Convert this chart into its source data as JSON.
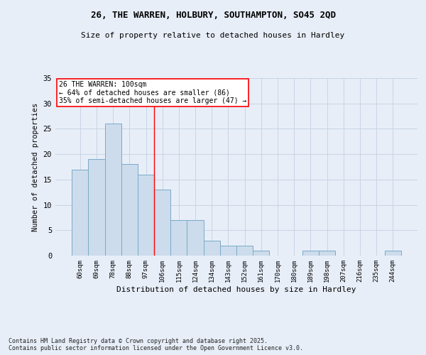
{
  "title1": "26, THE WARREN, HOLBURY, SOUTHAMPTON, SO45 2QD",
  "title2": "Size of property relative to detached houses in Hardley",
  "xlabel": "Distribution of detached houses by size in Hardley",
  "ylabel": "Number of detached properties",
  "footnote": "Contains HM Land Registry data © Crown copyright and database right 2025.\nContains public sector information licensed under the Open Government Licence v3.0.",
  "categories": [
    "60sqm",
    "69sqm",
    "78sqm",
    "88sqm",
    "97sqm",
    "106sqm",
    "115sqm",
    "124sqm",
    "134sqm",
    "143sqm",
    "152sqm",
    "161sqm",
    "170sqm",
    "180sqm",
    "189sqm",
    "198sqm",
    "207sqm",
    "216sqm",
    "235sqm",
    "244sqm"
  ],
  "values": [
    17,
    19,
    26,
    18,
    16,
    13,
    7,
    7,
    3,
    2,
    2,
    1,
    0,
    0,
    1,
    1,
    0,
    0,
    0,
    1
  ],
  "bar_color": "#ccdcec",
  "bar_edge_color": "#7aaac8",
  "grid_color": "#c8d4e4",
  "bg_color": "#e8eef8",
  "red_line_x": 4.5,
  "annotation_text": "26 THE WARREN: 100sqm\n← 64% of detached houses are smaller (86)\n35% of semi-detached houses are larger (47) →",
  "annotation_box_color": "white",
  "annotation_box_edge": "red",
  "ylim": [
    0,
    35
  ],
  "yticks": [
    0,
    5,
    10,
    15,
    20,
    25,
    30,
    35
  ]
}
